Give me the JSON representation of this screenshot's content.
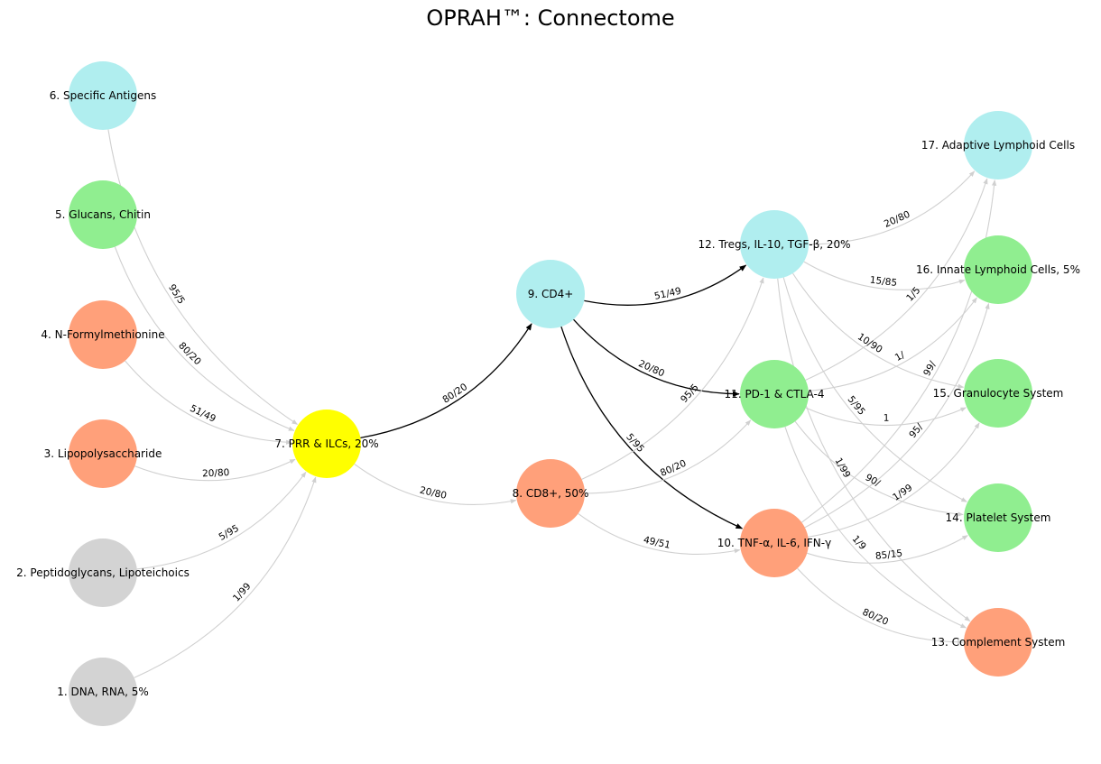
{
  "title": "OPRAH™: Connectome",
  "colors": {
    "grey": "#d3d3d3",
    "green": "#90ee90",
    "salmon": "#ffa07a",
    "yellow": "#ffff00",
    "cyan": "#b0eeef",
    "edge_default": "#d0d0d0",
    "edge_highlight": "#000000"
  },
  "nodes": [
    {
      "id": "n1",
      "label": "1. DNA, RNA,  5%",
      "color": "grey"
    },
    {
      "id": "n2",
      "label": "2. Peptidoglycans, Lipoteichoics",
      "color": "grey"
    },
    {
      "id": "n3",
      "label": "3. Lipopolysaccharide",
      "color": "salmon"
    },
    {
      "id": "n4",
      "label": "4. N-Formylmethionine",
      "color": "salmon"
    },
    {
      "id": "n5",
      "label": "5. Glucans, Chitin",
      "color": "green"
    },
    {
      "id": "n6",
      "label": "6. Specific Antigens",
      "color": "cyan"
    },
    {
      "id": "n7",
      "label": "7. PRR & ILCs, 20%",
      "color": "yellow"
    },
    {
      "id": "n8",
      "label": "8. CD8+, 50%",
      "color": "salmon"
    },
    {
      "id": "n9",
      "label": "9. CD4+",
      "color": "cyan"
    },
    {
      "id": "n10",
      "label": "10. TNF-α, IL-6, IFN-γ",
      "color": "salmon"
    },
    {
      "id": "n11",
      "label": "11. PD-1 & CTLA-4",
      "color": "green"
    },
    {
      "id": "n12",
      "label": "12. Tregs, IL-10, TGF-β, 20%",
      "color": "cyan"
    },
    {
      "id": "n13",
      "label": "13. Complement System",
      "color": "salmon"
    },
    {
      "id": "n14",
      "label": "14. Platelet System",
      "color": "green"
    },
    {
      "id": "n15",
      "label": "15. Granulocyte System",
      "color": "green"
    },
    {
      "id": "n16",
      "label": "16. Innate Lymphoid Cells, 5%",
      "color": "green"
    },
    {
      "id": "n17",
      "label": "17. Adaptive Lymphoid Cells",
      "color": "cyan"
    }
  ],
  "edges": [
    {
      "from": "n6",
      "to": "n7",
      "label": "95/5",
      "highlight": false
    },
    {
      "from": "n5",
      "to": "n7",
      "label": "80/20",
      "highlight": false
    },
    {
      "from": "n4",
      "to": "n7",
      "label": "51/49",
      "highlight": false
    },
    {
      "from": "n3",
      "to": "n7",
      "label": "20/80",
      "highlight": false
    },
    {
      "from": "n2",
      "to": "n7",
      "label": "5/95",
      "highlight": false
    },
    {
      "from": "n1",
      "to": "n7",
      "label": "1/99",
      "highlight": false
    },
    {
      "from": "n7",
      "to": "n9",
      "label": "80/20",
      "highlight": true
    },
    {
      "from": "n7",
      "to": "n8",
      "label": "20/80",
      "highlight": false
    },
    {
      "from": "n9",
      "to": "n12",
      "label": "51/49",
      "highlight": true
    },
    {
      "from": "n9",
      "to": "n11",
      "label": "20/80",
      "highlight": true
    },
    {
      "from": "n9",
      "to": "n10",
      "label": "5/95",
      "highlight": true
    },
    {
      "from": "n8",
      "to": "n12",
      "label": "95/5",
      "highlight": false
    },
    {
      "from": "n8",
      "to": "n11",
      "label": "80/20",
      "highlight": false
    },
    {
      "from": "n8",
      "to": "n10",
      "label": "49/51",
      "highlight": false
    },
    {
      "from": "n12",
      "to": "n17",
      "label": "20/80",
      "highlight": false
    },
    {
      "from": "n12",
      "to": "n16",
      "label": "15/85",
      "highlight": false
    },
    {
      "from": "n12",
      "to": "n15",
      "label": "10/90",
      "highlight": false
    },
    {
      "from": "n12",
      "to": "n14",
      "label": "5/95",
      "highlight": false
    },
    {
      "from": "n12",
      "to": "n13",
      "label": "1/99",
      "highlight": false
    },
    {
      "from": "n11",
      "to": "n17",
      "label": "1/5",
      "highlight": false
    },
    {
      "from": "n11",
      "to": "n16",
      "label": "1/",
      "highlight": false
    },
    {
      "from": "n11",
      "to": "n15",
      "label": "1",
      "highlight": false
    },
    {
      "from": "n11",
      "to": "n14",
      "label": "90/",
      "highlight": false
    },
    {
      "from": "n11",
      "to": "n13",
      "label": "1/9",
      "highlight": false
    },
    {
      "from": "n10",
      "to": "n17",
      "label": "99/",
      "highlight": false
    },
    {
      "from": "n10",
      "to": "n16",
      "label": "95/",
      "highlight": false
    },
    {
      "from": "n10",
      "to": "n15",
      "label": "1/99",
      "highlight": false
    },
    {
      "from": "n10",
      "to": "n14",
      "label": "85/15",
      "highlight": false
    },
    {
      "from": "n10",
      "to": "n13",
      "label": "80/20",
      "highlight": false
    }
  ]
}
